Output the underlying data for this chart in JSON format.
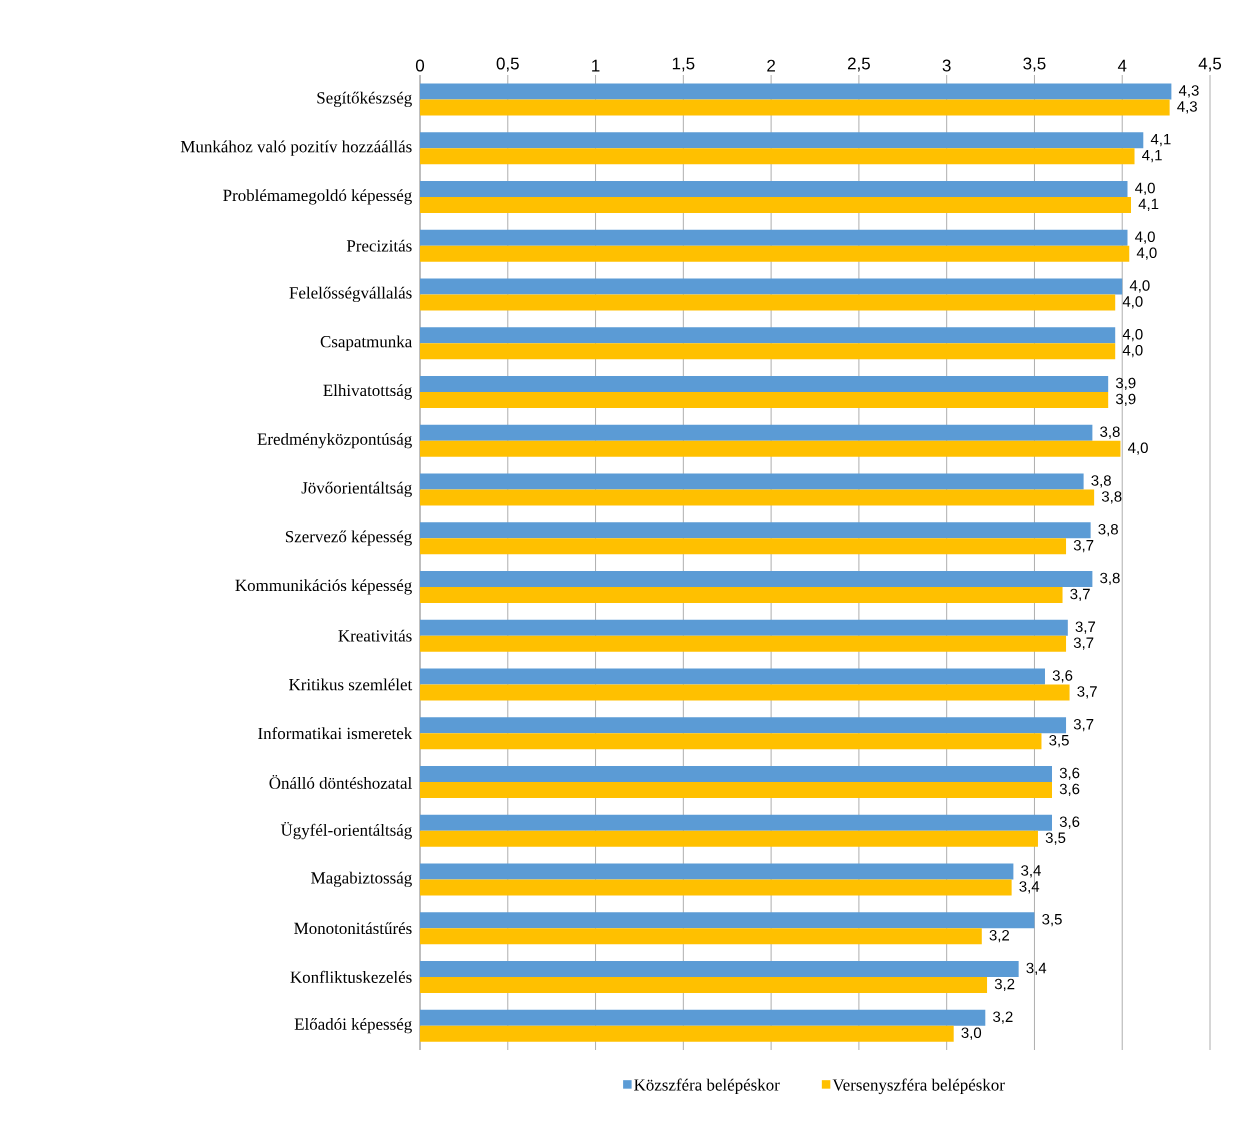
{
  "chart_data": {
    "type": "bar",
    "orientation": "horizontal",
    "categories": [
      "Segítőkészség",
      "Munkához való pozitív hozzáállás",
      "Problémamegoldó képesség",
      "Precizitás",
      "Felelősségvállalás",
      "Csapatmunka",
      "Elhivatottság",
      "Eredményközpontúság",
      "Jövőorientáltság",
      "Szervező képesség",
      "Kommunikációs képesség",
      "Kreativitás",
      "Kritikus szemlélet",
      "Informatikai ismeretek",
      "Önálló döntéshozatal",
      "Ügyfél-orientáltság",
      "Magabiztosság",
      "Monotonitástűrés",
      "Konfliktuskezelés",
      "Előadói képesség"
    ],
    "series": [
      {
        "name": "Közszféra belépéskor",
        "color": "#5b9bd5",
        "values": [
          4.28,
          4.12,
          4.03,
          4.03,
          4.0,
          3.96,
          3.92,
          3.83,
          3.78,
          3.82,
          3.83,
          3.69,
          3.56,
          3.68,
          3.6,
          3.6,
          3.38,
          3.5,
          3.41,
          3.22
        ],
        "value_labels": [
          "4,3",
          "4,1",
          "4,0",
          "4,0",
          "4,0",
          "4,0",
          "3,9",
          "3,8",
          "3,8",
          "3,8",
          "3,8",
          "3,7",
          "3,6",
          "3,7",
          "3,6",
          "3,6",
          "3,4",
          "3,5",
          "3,4",
          "3,2"
        ]
      },
      {
        "name": "Versenyszféra belépéskor",
        "color": "#ffc000",
        "values": [
          4.27,
          4.07,
          4.05,
          4.04,
          3.96,
          3.96,
          3.92,
          3.99,
          3.84,
          3.68,
          3.66,
          3.68,
          3.7,
          3.54,
          3.6,
          3.52,
          3.37,
          3.2,
          3.23,
          3.04
        ],
        "value_labels": [
          "4,3",
          "4,1",
          "4,1",
          "4,0",
          "4,0",
          "4,0",
          "3,9",
          "4,0",
          "3,8",
          "3,7",
          "3,7",
          "3,7",
          "3,7",
          "3,5",
          "3,6",
          "3,5",
          "3,4",
          "3,2",
          "3,2",
          "3,0"
        ]
      }
    ],
    "xlim": [
      0,
      4.5
    ],
    "xticks": [
      0,
      {
        "value": 0.5,
        "label": "0,5"
      },
      1,
      {
        "value": 1.5,
        "label": "1,5"
      },
      2,
      {
        "value": 2.5,
        "label": "2,5"
      },
      3,
      {
        "value": 3.5,
        "label": "3,5"
      },
      4,
      {
        "value": 4.5,
        "label": "4,5"
      }
    ],
    "grid": "x",
    "legend": "bottom"
  }
}
